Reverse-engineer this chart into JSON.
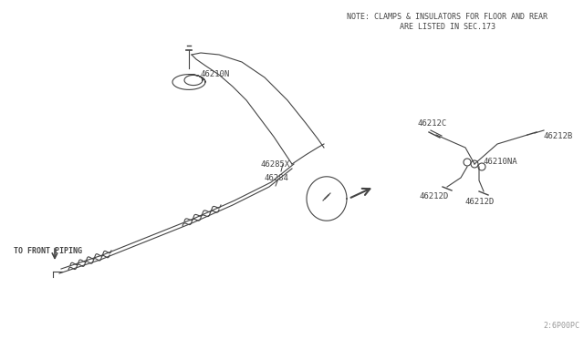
{
  "bg_color": "#ffffff",
  "note_text1": "NOTE: CLAMPS & INSULATORS FOR FLOOR AND REAR",
  "note_text2": "ARE LISTED IN SEC.173",
  "part_num_color": "#444444",
  "diagram_color": "#444444",
  "ref_code": "2:6P00PC"
}
